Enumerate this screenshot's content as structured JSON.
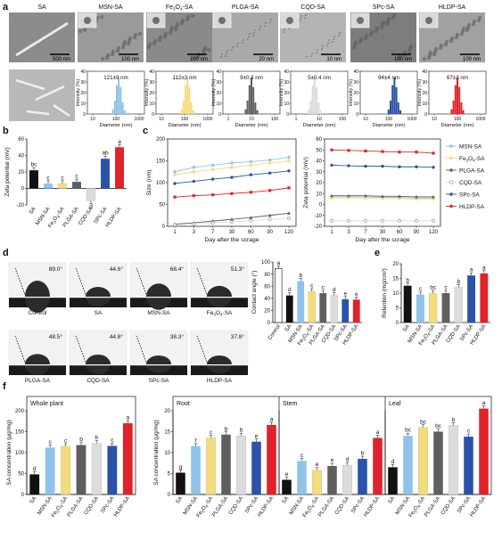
{
  "colors": {
    "SA": "#111111",
    "MSN-SA": "#8fc3ea",
    "Fe3O4-SA": "#f5dc7a",
    "PLGA-SA": "#5f5f5f",
    "CQD-SA": "#dcdcdc",
    "SPc-SA": "#2a52a8",
    "HLDP-SA": "#e0222a"
  },
  "panel_a": {
    "letter": "a",
    "tem_titles": [
      "SA",
      "MSN-SA",
      "Fe3O4-SA",
      "PLGA-SA",
      "CQD-SA",
      "SPc-SA",
      "HLDP-SA"
    ],
    "scale_bars": [
      "500 nm",
      "100 nm",
      "100 nm",
      "20 nm",
      "10 nm",
      "100 nm",
      "100 nm"
    ],
    "dls_sizes": [
      "121±9 nm",
      "112±3 nm",
      "9±0.3 nm",
      "5±0.4 nm",
      "94±4 nm",
      "67±3 nm"
    ],
    "dls_ylabel": "Intensity (%)",
    "dls_xlabel": "Diameter (nm)",
    "ticks_y": [
      "0",
      "10",
      "20",
      "30",
      "40"
    ],
    "ticks_x_small": [
      "1",
      "10",
      "100"
    ],
    "ticks_x_large": [
      "10",
      "100",
      "1000"
    ]
  },
  "panel_b": {
    "letter": "b",
    "ylabel": "Zeta potential (mV)",
    "categories": [
      "SA",
      "MSN-SA",
      "Fe3O4-SA",
      "PLGA-SA",
      "CQD-SA",
      "SPc-SA",
      "HLDP-SA"
    ],
    "values": [
      22,
      6,
      6,
      8,
      -15,
      36,
      50
    ],
    "letters": [
      "bc",
      "c",
      "c",
      "c",
      "d",
      "ab",
      "a"
    ],
    "yticks": [
      "-20",
      "0",
      "20",
      "40",
      "60"
    ]
  },
  "panel_c": {
    "letter": "c",
    "xlabel": "Day after the scrage",
    "xticks": [
      "1",
      "3",
      "7",
      "30",
      "60",
      "90",
      "120"
    ],
    "size_ylabel": "Size (nm)",
    "size_yticks": [
      "0",
      "50",
      "100",
      "150",
      "200"
    ],
    "zeta_ylabel": "Zeta potential (mV)",
    "zeta_yticks": [
      "-20",
      "-10",
      "0",
      "10",
      "20",
      "30",
      "40",
      "50",
      "60"
    ],
    "legend": [
      "MSN-SA",
      "Fe3O4-SA",
      "PLGA-SA",
      "CQD-SA",
      "SPc-SA",
      "HLDP-SA"
    ]
  },
  "panel_d": {
    "letter": "d",
    "photo_labels": [
      "Control",
      "SA",
      "MSN-SA",
      "Fe3O4-SA",
      "PLGA-SA",
      "CQD-SA",
      "SPc-SA",
      "HLDP-SA"
    ],
    "angles": [
      "89.0°",
      "44.6°",
      "68.4°",
      "51.3°",
      "48.5°",
      "44.8°",
      "38.3°",
      "37.8°"
    ],
    "ylabel": "Contact angle (°)",
    "categories": [
      "Control",
      "SA",
      "MSN-SA",
      "Fe3O4-SA",
      "PLGA-SA",
      "CQD-SA",
      "SPc-SA",
      "HLDP-SA"
    ],
    "values": [
      89.0,
      44.6,
      68.4,
      51.3,
      48.5,
      44.8,
      38.3,
      37.8
    ],
    "letters": [
      "a",
      "d",
      "b",
      "c",
      "c",
      "d",
      "e",
      "e"
    ],
    "yticks": [
      "0",
      "20",
      "40",
      "60",
      "80",
      "100"
    ]
  },
  "panel_e": {
    "letter": "e",
    "ylabel": "Retention (mg/cm²)",
    "categories": [
      "SA",
      "MSN-SA",
      "Fe3O4-SA",
      "PLGA-SA",
      "CQD-SA",
      "SPc-SA",
      "HLDP-SA"
    ],
    "values": [
      12.5,
      9.5,
      10.0,
      10.0,
      12.0,
      16.0,
      16.7
    ],
    "letters": [
      "b",
      "c",
      "bc",
      "c",
      "b",
      "a",
      "a"
    ],
    "yticks": [
      "0",
      "5",
      "10",
      "15",
      "20"
    ]
  },
  "panel_f": {
    "letter": "f",
    "ylabel": "SA concentration (μg/mg)",
    "categories": [
      "SA",
      "MSN-SA",
      "Fe3O4-SA",
      "PLGA-SA",
      "CQD-SA",
      "SPc-SA",
      "HLDP-SA"
    ],
    "whole": {
      "title": "Whole plant",
      "values": [
        48,
        112,
        115,
        118,
        122,
        116,
        170
      ],
      "letters": [
        "d",
        "c",
        "c",
        "b",
        "b",
        "c",
        "a"
      ],
      "yticks": [
        "0",
        "50",
        "100",
        "150",
        "200"
      ],
      "max": 200
    },
    "root": {
      "title": "Root",
      "values": [
        5.2,
        11.5,
        13.5,
        14.3,
        14.0,
        12.6,
        16.6
      ],
      "letters": [
        "g",
        "f",
        "c",
        "b",
        "b",
        "e",
        "a"
      ],
      "yticks": [
        "0",
        "5",
        "10",
        "15",
        "20"
      ],
      "max": 20
    },
    "stem": {
      "title": "Stem",
      "values": [
        3.5,
        8.0,
        5.8,
        6.8,
        7.0,
        8.5,
        13.5
      ],
      "letters": [
        "e",
        "c",
        "e",
        "e",
        "d",
        "b",
        "a"
      ],
      "max": 20
    },
    "leaf": {
      "title": "Leaf",
      "values": [
        6.5,
        14.0,
        16.0,
        15.0,
        16.5,
        13.8,
        20.5
      ],
      "letters": [
        "d",
        "bc",
        "bc",
        "bc",
        "b",
        "c",
        "a"
      ],
      "max": 20
    }
  },
  "chart_data": [
    {
      "type": "bar",
      "title": "",
      "ylabel": "Zeta potential (mV)",
      "categories": [
        "SA",
        "MSN-SA",
        "Fe3O4-SA",
        "PLGA-SA",
        "CQD-SA",
        "SPc-SA",
        "HLDP-SA"
      ],
      "values": [
        22,
        6,
        6,
        8,
        -15,
        36,
        50
      ],
      "ylim": [
        -20,
        60
      ]
    },
    {
      "type": "line",
      "title": "",
      "xlabel": "Day after the scrage",
      "ylabel": "Size (nm)",
      "x": [
        "1",
        "3",
        "7",
        "30",
        "60",
        "90",
        "120"
      ],
      "ylim": [
        0,
        200
      ],
      "series": [
        {
          "name": "MSN-SA",
          "values": [
            125,
            135,
            140,
            145,
            148,
            152,
            158
          ]
        },
        {
          "name": "Fe3O4-SA",
          "values": [
            118,
            125,
            130,
            135,
            140,
            145,
            150
          ]
        },
        {
          "name": "PLGA-SA",
          "values": [
            5,
            8,
            12,
            16,
            20,
            25,
            30
          ]
        },
        {
          "name": "CQD-SA",
          "values": [
            3,
            5,
            8,
            10,
            13,
            16,
            18
          ]
        },
        {
          "name": "SPc-SA",
          "values": [
            98,
            103,
            108,
            112,
            118,
            122,
            127
          ]
        },
        {
          "name": "HLDP-SA",
          "values": [
            67,
            70,
            72,
            75,
            78,
            82,
            88
          ]
        }
      ]
    },
    {
      "type": "line",
      "title": "",
      "xlabel": "Day after the scrage",
      "ylabel": "Zeta potential (mV)",
      "x": [
        "1",
        "3",
        "7",
        "30",
        "60",
        "90",
        "120"
      ],
      "ylim": [
        -20,
        60
      ],
      "series": [
        {
          "name": "MSN-SA",
          "values": [
            7,
            7,
            7,
            6.5,
            6.5,
            6,
            6
          ]
        },
        {
          "name": "Fe3O4-SA",
          "values": [
            6,
            6,
            6,
            5.5,
            5.5,
            5,
            5
          ]
        },
        {
          "name": "PLGA-SA",
          "values": [
            8,
            8,
            8,
            7.5,
            7.5,
            7,
            7
          ]
        },
        {
          "name": "CQD-SA",
          "values": [
            -15,
            -15,
            -15,
            -15,
            -15,
            -15,
            -15
          ]
        },
        {
          "name": "SPc-SA",
          "values": [
            36,
            35.5,
            35,
            35,
            34.5,
            34.5,
            34
          ]
        },
        {
          "name": "HLDP-SA",
          "values": [
            50,
            49.5,
            49,
            48.5,
            48,
            48,
            47
          ]
        }
      ]
    },
    {
      "type": "bar",
      "title": "",
      "ylabel": "Contact angle (°)",
      "categories": [
        "Control",
        "SA",
        "MSN-SA",
        "Fe3O4-SA",
        "PLGA-SA",
        "CQD-SA",
        "SPc-SA",
        "HLDP-SA"
      ],
      "values": [
        89.0,
        44.6,
        68.4,
        51.3,
        48.5,
        44.8,
        38.3,
        37.8
      ],
      "ylim": [
        0,
        100
      ]
    },
    {
      "type": "bar",
      "title": "",
      "ylabel": "Retention (mg/cm²)",
      "categories": [
        "SA",
        "MSN-SA",
        "Fe3O4-SA",
        "PLGA-SA",
        "CQD-SA",
        "SPc-SA",
        "HLDP-SA"
      ],
      "values": [
        12.5,
        9.5,
        10.0,
        10.0,
        12.0,
        16.0,
        16.7
      ],
      "ylim": [
        0,
        20
      ]
    },
    {
      "type": "bar",
      "title": "Whole plant",
      "ylabel": "SA concentration (μg/mg)",
      "categories": [
        "SA",
        "MSN-SA",
        "Fe3O4-SA",
        "PLGA-SA",
        "CQD-SA",
        "SPc-SA",
        "HLDP-SA"
      ],
      "values": [
        48,
        112,
        115,
        118,
        122,
        116,
        170
      ],
      "ylim": [
        0,
        200
      ]
    },
    {
      "type": "bar",
      "title": "Root",
      "ylabel": "SA concentration (μg/mg)",
      "categories": [
        "SA",
        "MSN-SA",
        "Fe3O4-SA",
        "PLGA-SA",
        "CQD-SA",
        "SPc-SA",
        "HLDP-SA"
      ],
      "values": [
        5.2,
        11.5,
        13.5,
        14.3,
        14.0,
        12.6,
        16.6
      ],
      "ylim": [
        0,
        20
      ]
    },
    {
      "type": "bar",
      "title": "Stem",
      "categories": [
        "SA",
        "MSN-SA",
        "Fe3O4-SA",
        "PLGA-SA",
        "CQD-SA",
        "SPc-SA",
        "HLDP-SA"
      ],
      "values": [
        3.5,
        8.0,
        5.8,
        6.8,
        7.0,
        8.5,
        13.5
      ],
      "ylim": [
        0,
        20
      ]
    },
    {
      "type": "bar",
      "title": "Leaf",
      "categories": [
        "SA",
        "MSN-SA",
        "Fe3O4-SA",
        "PLGA-SA",
        "CQD-SA",
        "SPc-SA",
        "HLDP-SA"
      ],
      "values": [
        6.5,
        14.0,
        16.0,
        15.0,
        16.5,
        13.8,
        20.5
      ],
      "ylim": [
        0,
        20
      ]
    }
  ]
}
